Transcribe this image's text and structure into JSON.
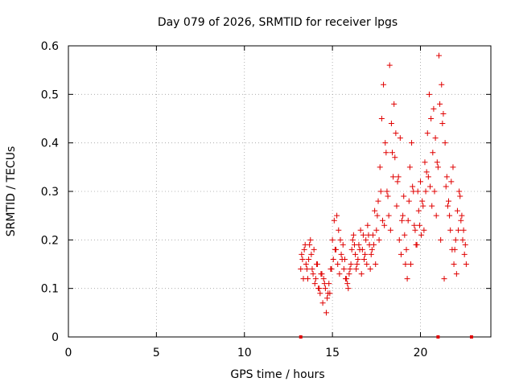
{
  "chart_data": {
    "type": "scatter",
    "title": "Day 079 of 2026, SRMTID for receiver lpgs",
    "xlabel": "GPS time / hours",
    "ylabel": "SRMTID / TECUs",
    "xlim": [
      0,
      24
    ],
    "ylim": [
      0,
      0.6
    ],
    "xticks": [
      0,
      5,
      10,
      15,
      20
    ],
    "xtick_labels": [
      "0",
      "5",
      "10",
      "15",
      "20"
    ],
    "yticks": [
      0,
      0.1,
      0.2,
      0.3,
      0.4,
      0.5,
      0.6
    ],
    "ytick_labels": [
      "0",
      "0.1",
      "0.2",
      "0.3",
      "0.4",
      "0.5",
      "0.6"
    ],
    "grid": true,
    "marker": "+",
    "color": "#e00000",
    "series": [
      {
        "name": "SRMTID",
        "x": [
          13.2,
          13.3,
          13.4,
          13.5,
          13.6,
          13.7,
          13.8,
          13.9,
          14.0,
          14.1,
          14.2,
          14.3,
          14.4,
          14.5,
          14.6,
          14.7,
          14.8,
          14.9,
          15.0,
          15.1,
          15.2,
          15.3,
          15.4,
          15.5,
          15.6,
          15.7,
          15.8,
          15.9,
          16.0,
          16.1,
          16.2,
          16.3,
          16.4,
          16.5,
          16.6,
          16.7,
          16.8,
          16.9,
          17.0,
          17.1,
          17.2,
          17.3,
          17.4,
          17.5,
          17.6,
          17.7,
          17.8,
          17.9,
          18.0,
          18.1,
          18.2,
          18.3,
          18.4,
          18.5,
          18.6,
          18.7,
          18.8,
          18.9,
          19.0,
          19.1,
          19.2,
          19.3,
          19.4,
          19.5,
          19.6,
          19.7,
          19.8,
          19.9,
          20.0,
          20.1,
          20.2,
          20.3,
          20.4,
          20.5,
          20.6,
          20.7,
          20.8,
          20.9,
          21.0,
          21.1,
          21.2,
          21.3,
          21.4,
          21.5,
          21.6,
          21.7,
          21.8,
          21.9,
          22.0,
          22.1,
          22.2,
          22.3,
          22.4,
          22.5,
          22.6,
          13.25,
          13.45,
          13.65,
          13.85,
          14.05,
          14.25,
          14.45,
          14.65,
          14.85,
          15.05,
          15.25,
          15.45,
          15.65,
          15.85,
          16.05,
          16.25,
          16.45,
          16.65,
          16.85,
          17.05,
          17.25,
          17.45,
          17.65,
          17.85,
          18.05,
          18.25,
          18.45,
          18.65,
          18.85,
          19.05,
          19.25,
          19.45,
          19.65,
          19.85,
          20.05,
          20.25,
          20.45,
          20.65,
          20.85,
          21.05,
          21.25,
          21.45,
          21.65,
          21.85,
          22.05,
          22.25,
          22.45,
          13.35,
          13.55,
          13.75,
          13.95,
          14.15,
          14.35,
          14.55,
          14.75,
          14.95,
          15.15,
          15.35,
          15.55,
          15.75,
          15.95,
          16.15,
          16.35,
          16.55,
          16.75,
          16.95,
          17.15,
          17.35,
          17.55,
          17.75,
          17.95,
          18.15,
          18.35,
          18.55,
          18.75,
          18.95,
          19.15,
          19.35,
          19.55,
          19.75,
          19.95,
          20.15,
          20.35,
          20.55,
          20.75,
          20.95,
          21.15,
          21.35,
          21.55,
          21.75,
          21.95,
          22.15,
          22.35,
          22.55
        ],
        "y": [
          0.14,
          0.16,
          0.18,
          0.15,
          0.12,
          0.19,
          0.17,
          0.13,
          0.11,
          0.15,
          0.1,
          0.09,
          0.13,
          0.12,
          0.1,
          0.08,
          0.11,
          0.14,
          0.2,
          0.24,
          0.18,
          0.15,
          0.13,
          0.17,
          0.19,
          0.16,
          0.12,
          0.1,
          0.14,
          0.18,
          0.21,
          0.17,
          0.15,
          0.19,
          0.22,
          0.18,
          0.16,
          0.2,
          0.23,
          0.19,
          0.17,
          0.21,
          0.26,
          0.22,
          0.28,
          0.35,
          0.45,
          0.52,
          0.4,
          0.3,
          0.25,
          0.22,
          0.38,
          0.48,
          0.42,
          0.32,
          0.2,
          0.17,
          0.25,
          0.21,
          0.18,
          0.24,
          0.35,
          0.4,
          0.3,
          0.22,
          0.19,
          0.26,
          0.32,
          0.28,
          0.22,
          0.3,
          0.42,
          0.5,
          0.45,
          0.38,
          0.3,
          0.25,
          0.35,
          0.48,
          0.52,
          0.46,
          0.4,
          0.33,
          0.28,
          0.22,
          0.18,
          0.15,
          0.2,
          0.26,
          0.3,
          0.24,
          0.2,
          0.17,
          0.15,
          0.17,
          0.19,
          0.16,
          0.14,
          0.12,
          0.1,
          0.07,
          0.05,
          0.09,
          0.16,
          0.25,
          0.2,
          0.14,
          0.11,
          0.15,
          0.19,
          0.16,
          0.13,
          0.17,
          0.21,
          0.18,
          0.15,
          0.2,
          0.24,
          0.38,
          0.56,
          0.33,
          0.27,
          0.41,
          0.29,
          0.12,
          0.15,
          0.23,
          0.3,
          0.21,
          0.36,
          0.33,
          0.27,
          0.41,
          0.58,
          0.44,
          0.31,
          0.25,
          0.35,
          0.13,
          0.29,
          0.22,
          0.12,
          0.14,
          0.2,
          0.18,
          0.15,
          0.13,
          0.11,
          0.09,
          0.14,
          0.18,
          0.22,
          0.16,
          0.12,
          0.13,
          0.2,
          0.14,
          0.18,
          0.21,
          0.15,
          0.14,
          0.19,
          0.25,
          0.3,
          0.23,
          0.29,
          0.44,
          0.37,
          0.33,
          0.24,
          0.15,
          0.28,
          0.31,
          0.19,
          0.23,
          0.27,
          0.34,
          0.31,
          0.47,
          0.36,
          0.2,
          0.12,
          0.27,
          0.32,
          0.18,
          0.22,
          0.25,
          0.19
        ]
      }
    ],
    "axis_markers_x": [
      13.2,
      21.0,
      22.9
    ]
  }
}
